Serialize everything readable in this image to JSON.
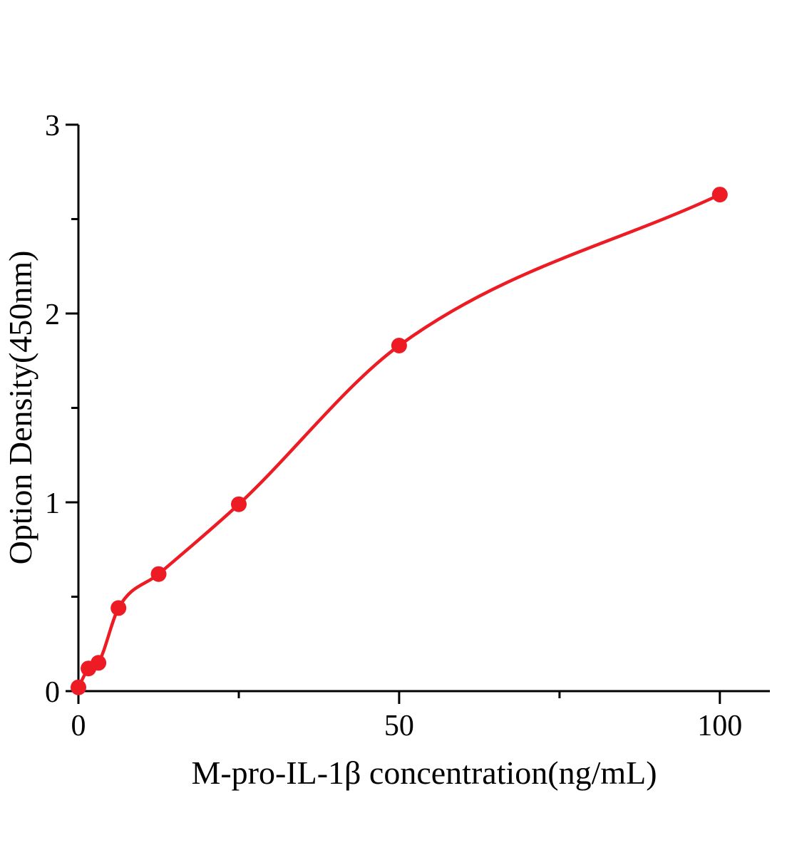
{
  "chart_data": {
    "type": "scatter",
    "title": "",
    "xlabel": "M-pro-IL-1β concentration(ng/mL)",
    "ylabel": "Option Density(450nm)",
    "x": [
      0,
      1.5625,
      3.125,
      6.25,
      12.5,
      25,
      50,
      100
    ],
    "y": [
      0.02,
      0.12,
      0.15,
      0.44,
      0.62,
      0.99,
      1.83,
      2.63
    ],
    "fit_line": "smooth saturating curve through all data points",
    "xlim": [
      0,
      107.8
    ],
    "ylim": [
      0,
      3
    ],
    "x_major_ticks": [
      0,
      50,
      100
    ],
    "x_tick_labels": [
      "0",
      "50",
      "100"
    ],
    "x_minor_ticks": [
      25,
      75
    ],
    "y_major_ticks": [
      0,
      1,
      2,
      3
    ],
    "y_tick_labels": [
      "0",
      "1",
      "2",
      "3"
    ],
    "y_minor_ticks": [
      0.5,
      1.5,
      2.5
    ],
    "grid": false,
    "legend": false,
    "point_color": "#ed1c24",
    "line_color": "#ed1c24",
    "axis_color": "#000000"
  }
}
